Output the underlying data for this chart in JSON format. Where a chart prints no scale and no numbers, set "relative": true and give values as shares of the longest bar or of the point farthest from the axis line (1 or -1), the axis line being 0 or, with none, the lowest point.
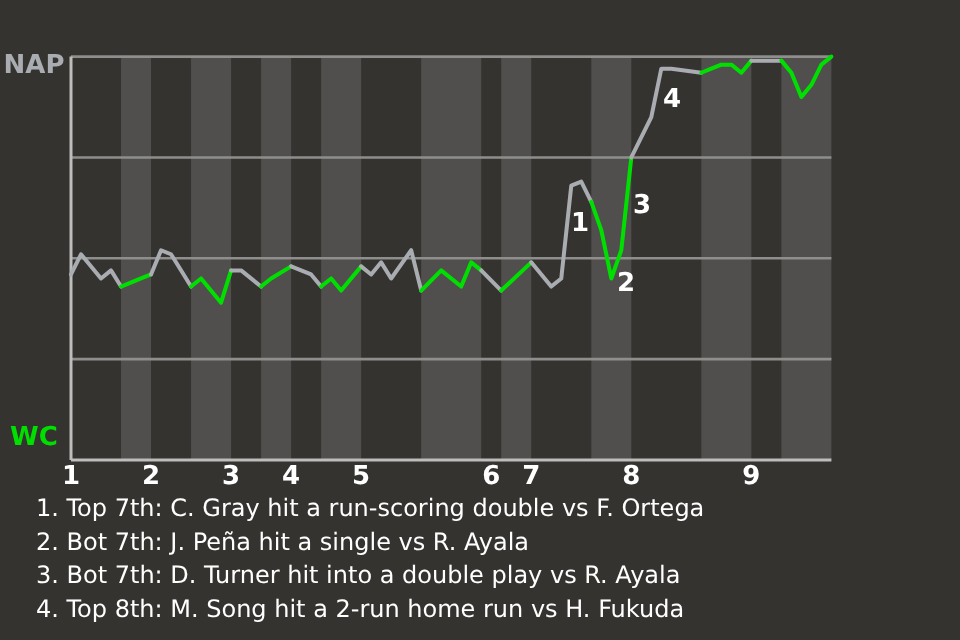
{
  "chart_data": {
    "type": "line",
    "relative": true,
    "categories": [
      "1",
      null,
      null,
      null,
      null,
      null,
      null,
      null,
      "2",
      null,
      null,
      null,
      null,
      null,
      null,
      null,
      "3",
      null,
      null,
      null,
      null,
      null,
      "4",
      null,
      null,
      null,
      null,
      null,
      null,
      "5",
      null,
      null,
      null,
      null,
      null,
      null,
      null,
      null,
      null,
      null,
      null,
      null,
      "6",
      null,
      null,
      null,
      "7",
      null,
      null,
      null,
      null,
      null,
      null,
      null,
      null,
      null,
      "8",
      null,
      null,
      null,
      null,
      null,
      null,
      null,
      null,
      null,
      null,
      null,
      "9",
      null,
      null,
      null,
      null,
      null,
      null,
      null,
      null
    ],
    "series": [
      {
        "color": "#a9adb1",
        "values": [
          0.46,
          0.51,
          null,
          0.45,
          0.47,
          0.43,
          null,
          null,
          null,
          null,
          null,
          null,
          null,
          null,
          null,
          null,
          null,
          null,
          null,
          null,
          null,
          null,
          null,
          null,
          null,
          null,
          null,
          null,
          null,
          null,
          null,
          null,
          null,
          null,
          null,
          null,
          null,
          null,
          null,
          null,
          null,
          null,
          null,
          null,
          null,
          null,
          null,
          null,
          null,
          null,
          null,
          null,
          null,
          null,
          null,
          null,
          null,
          null,
          null,
          null,
          null,
          null,
          null,
          null,
          null,
          null,
          null,
          null,
          null,
          null,
          null,
          null,
          null,
          null,
          null,
          null,
          null
        ]
      },
      {
        "color": "#00e000",
        "values": [
          null,
          null,
          null,
          null,
          null,
          0.43,
          null,
          0.45,
          0.46,
          null,
          null,
          null,
          null,
          null,
          null,
          null,
          null,
          null,
          null,
          null,
          null,
          null,
          null,
          null,
          null,
          null,
          null,
          null,
          null,
          null,
          null,
          null,
          null,
          null,
          null,
          null,
          null,
          null,
          null,
          null,
          null,
          null,
          null,
          null,
          null,
          null,
          null,
          null,
          null,
          null,
          null,
          null,
          null,
          null,
          null,
          null,
          null,
          null,
          null,
          null,
          null,
          null,
          null,
          null,
          null,
          null,
          null,
          null,
          null,
          null,
          null,
          null,
          null,
          null,
          null,
          null,
          null
        ]
      },
      {
        "color": "#a9adb1",
        "values": [
          null,
          null,
          null,
          null,
          null,
          null,
          null,
          null,
          0.46,
          0.52,
          0.51,
          null,
          0.43,
          null,
          null,
          null,
          null,
          null,
          null,
          null,
          null,
          null,
          null,
          null,
          null,
          null,
          null,
          null,
          null,
          null,
          null,
          null,
          null,
          null,
          null,
          null,
          null,
          null,
          null,
          null,
          null,
          null,
          null,
          null,
          null,
          null,
          null,
          null,
          null,
          null,
          null,
          null,
          null,
          null,
          null,
          null,
          null,
          null,
          null,
          null,
          null,
          null,
          null,
          null,
          null,
          null,
          null,
          null,
          null,
          null,
          null,
          null,
          null,
          null,
          null,
          null,
          null
        ]
      },
      {
        "color": "#00e000",
        "values": [
          null,
          null,
          null,
          null,
          null,
          null,
          null,
          null,
          null,
          null,
          null,
          null,
          0.43,
          0.45,
          null,
          0.39,
          0.47,
          null,
          null,
          null,
          null,
          null,
          null,
          null,
          null,
          null,
          null,
          null,
          null,
          null,
          null,
          null,
          null,
          null,
          null,
          null,
          null,
          null,
          null,
          null,
          null,
          null,
          null,
          null,
          null,
          null,
          null,
          null,
          null,
          null,
          null,
          null,
          null,
          null,
          null,
          null,
          null,
          null,
          null,
          null,
          null,
          null,
          null,
          null,
          null,
          null,
          null,
          null,
          null,
          null,
          null,
          null,
          null,
          null,
          null,
          null,
          null
        ]
      },
      {
        "color": "#a9adb1",
        "values": [
          null,
          null,
          null,
          null,
          null,
          null,
          null,
          null,
          null,
          null,
          null,
          null,
          null,
          null,
          null,
          null,
          0.47,
          0.47,
          null,
          0.43,
          null,
          null,
          null,
          null,
          null,
          null,
          null,
          null,
          null,
          null,
          null,
          null,
          null,
          null,
          null,
          null,
          null,
          null,
          null,
          null,
          null,
          null,
          null,
          null,
          null,
          null,
          null,
          null,
          null,
          null,
          null,
          null,
          null,
          null,
          null,
          null,
          null,
          null,
          null,
          null,
          null,
          null,
          null,
          null,
          null,
          null,
          null,
          null,
          null,
          null,
          null,
          null,
          null,
          null,
          null,
          null,
          null
        ]
      },
      {
        "color": "#00e000",
        "values": [
          null,
          null,
          null,
          null,
          null,
          null,
          null,
          null,
          null,
          null,
          null,
          null,
          null,
          null,
          null,
          null,
          null,
          null,
          null,
          0.43,
          0.45,
          null,
          0.48,
          null,
          null,
          null,
          null,
          null,
          null,
          null,
          null,
          null,
          null,
          null,
          null,
          null,
          null,
          null,
          null,
          null,
          null,
          null,
          null,
          null,
          null,
          null,
          null,
          null,
          null,
          null,
          null,
          null,
          null,
          null,
          null,
          null,
          null,
          null,
          null,
          null,
          null,
          null,
          null,
          null,
          null,
          null,
          null,
          null,
          null,
          null,
          null,
          null,
          null,
          null,
          null,
          null,
          null
        ]
      },
      {
        "color": "#a9adb1",
        "values": [
          null,
          null,
          null,
          null,
          null,
          null,
          null,
          null,
          null,
          null,
          null,
          null,
          null,
          null,
          null,
          null,
          null,
          null,
          null,
          null,
          null,
          null,
          0.48,
          null,
          0.46,
          0.43,
          null,
          null,
          null,
          null,
          null,
          null,
          null,
          null,
          null,
          null,
          null,
          null,
          null,
          null,
          null,
          null,
          null,
          null,
          null,
          null,
          null,
          null,
          null,
          null,
          null,
          null,
          null,
          null,
          null,
          null,
          null,
          null,
          null,
          null,
          null,
          null,
          null,
          null,
          null,
          null,
          null,
          null,
          null,
          null,
          null,
          null,
          null,
          null,
          null,
          null,
          null
        ]
      },
      {
        "color": "#00e000",
        "values": [
          null,
          null,
          null,
          null,
          null,
          null,
          null,
          null,
          null,
          null,
          null,
          null,
          null,
          null,
          null,
          null,
          null,
          null,
          null,
          null,
          null,
          null,
          null,
          null,
          null,
          0.43,
          0.45,
          0.42,
          null,
          0.48,
          null,
          null,
          null,
          null,
          null,
          null,
          null,
          null,
          null,
          null,
          null,
          null,
          null,
          null,
          null,
          null,
          null,
          null,
          null,
          null,
          null,
          null,
          null,
          null,
          null,
          null,
          null,
          null,
          null,
          null,
          null,
          null,
          null,
          null,
          null,
          null,
          null,
          null,
          null,
          null,
          null,
          null,
          null,
          null,
          null,
          null,
          null
        ]
      },
      {
        "color": "#a9adb1",
        "values": [
          null,
          null,
          null,
          null,
          null,
          null,
          null,
          null,
          null,
          null,
          null,
          null,
          null,
          null,
          null,
          null,
          null,
          null,
          null,
          null,
          null,
          null,
          null,
          null,
          null,
          null,
          null,
          null,
          null,
          0.48,
          0.46,
          0.49,
          0.45,
          null,
          0.52,
          0.42,
          null,
          null,
          null,
          null,
          null,
          null,
          null,
          null,
          null,
          null,
          null,
          null,
          null,
          null,
          null,
          null,
          null,
          null,
          null,
          null,
          null,
          null,
          null,
          null,
          null,
          null,
          null,
          null,
          null,
          null,
          null,
          null,
          null,
          null,
          null,
          null,
          null,
          null,
          null,
          null,
          null
        ]
      },
      {
        "color": "#00e000",
        "values": [
          null,
          null,
          null,
          null,
          null,
          null,
          null,
          null,
          null,
          null,
          null,
          null,
          null,
          null,
          null,
          null,
          null,
          null,
          null,
          null,
          null,
          null,
          null,
          null,
          null,
          null,
          null,
          null,
          null,
          null,
          null,
          null,
          null,
          null,
          null,
          0.42,
          null,
          0.47,
          null,
          0.43,
          0.49,
          0.47,
          null,
          null,
          null,
          null,
          null,
          null,
          null,
          null,
          null,
          null,
          null,
          null,
          null,
          null,
          null,
          null,
          null,
          null,
          null,
          null,
          null,
          null,
          null,
          null,
          null,
          null,
          null,
          null,
          null,
          null,
          null,
          null,
          null,
          null,
          null
        ]
      },
      {
        "color": "#a9adb1",
        "values": [
          null,
          null,
          null,
          null,
          null,
          null,
          null,
          null,
          null,
          null,
          null,
          null,
          null,
          null,
          null,
          null,
          null,
          null,
          null,
          null,
          null,
          null,
          null,
          null,
          null,
          null,
          null,
          null,
          null,
          null,
          null,
          null,
          null,
          null,
          null,
          null,
          null,
          null,
          null,
          null,
          null,
          0.47,
          null,
          0.42,
          null,
          null,
          null,
          null,
          null,
          null,
          null,
          null,
          null,
          null,
          null,
          null,
          null,
          null,
          null,
          null,
          null,
          null,
          null,
          null,
          null,
          null,
          null,
          null,
          null,
          null,
          null,
          null,
          null,
          null,
          null,
          null,
          null
        ]
      },
      {
        "color": "#00e000",
        "values": [
          null,
          null,
          null,
          null,
          null,
          null,
          null,
          null,
          null,
          null,
          null,
          null,
          null,
          null,
          null,
          null,
          null,
          null,
          null,
          null,
          null,
          null,
          null,
          null,
          null,
          null,
          null,
          null,
          null,
          null,
          null,
          null,
          null,
          null,
          null,
          null,
          null,
          null,
          null,
          null,
          null,
          null,
          null,
          0.42,
          null,
          null,
          0.49,
          null,
          null,
          null,
          null,
          null,
          null,
          null,
          null,
          null,
          null,
          null,
          null,
          null,
          null,
          null,
          null,
          null,
          null,
          null,
          null,
          null,
          null,
          null,
          null,
          null,
          null,
          null,
          null,
          null,
          null
        ]
      },
      {
        "color": "#a9adb1",
        "values": [
          null,
          null,
          null,
          null,
          null,
          null,
          null,
          null,
          null,
          null,
          null,
          null,
          null,
          null,
          null,
          null,
          null,
          null,
          null,
          null,
          null,
          null,
          null,
          null,
          null,
          null,
          null,
          null,
          null,
          null,
          null,
          null,
          null,
          null,
          null,
          null,
          null,
          null,
          null,
          null,
          null,
          null,
          null,
          null,
          null,
          null,
          0.49,
          null,
          0.43,
          0.45,
          0.68,
          0.69,
          0.64,
          null,
          null,
          null,
          null,
          null,
          null,
          null,
          null,
          null,
          null,
          null,
          null,
          null,
          null,
          null,
          null,
          null,
          null,
          null,
          null,
          null,
          null,
          null,
          null
        ]
      },
      {
        "color": "#00e000",
        "values": [
          null,
          null,
          null,
          null,
          null,
          null,
          null,
          null,
          null,
          null,
          null,
          null,
          null,
          null,
          null,
          null,
          null,
          null,
          null,
          null,
          null,
          null,
          null,
          null,
          null,
          null,
          null,
          null,
          null,
          null,
          null,
          null,
          null,
          null,
          null,
          null,
          null,
          null,
          null,
          null,
          null,
          null,
          null,
          null,
          null,
          null,
          null,
          null,
          null,
          null,
          null,
          null,
          0.64,
          0.57,
          0.45,
          0.52,
          0.75,
          null,
          null,
          null,
          null,
          null,
          null,
          null,
          null,
          null,
          null,
          null,
          null,
          null,
          null,
          null,
          null,
          null,
          null,
          null,
          null
        ]
      },
      {
        "color": "#a9adb1",
        "values": [
          null,
          null,
          null,
          null,
          null,
          null,
          null,
          null,
          null,
          null,
          null,
          null,
          null,
          null,
          null,
          null,
          null,
          null,
          null,
          null,
          null,
          null,
          null,
          null,
          null,
          null,
          null,
          null,
          null,
          null,
          null,
          null,
          null,
          null,
          null,
          null,
          null,
          null,
          null,
          null,
          null,
          null,
          null,
          null,
          null,
          null,
          null,
          null,
          null,
          null,
          null,
          null,
          null,
          null,
          null,
          null,
          0.75,
          null,
          0.85,
          0.97,
          0.97,
          null,
          null,
          0.96,
          null,
          null,
          null,
          null,
          null,
          null,
          null,
          null,
          null,
          null,
          null,
          null,
          null
        ]
      },
      {
        "color": "#00e000",
        "values": [
          null,
          null,
          null,
          null,
          null,
          null,
          null,
          null,
          null,
          null,
          null,
          null,
          null,
          null,
          null,
          null,
          null,
          null,
          null,
          null,
          null,
          null,
          null,
          null,
          null,
          null,
          null,
          null,
          null,
          null,
          null,
          null,
          null,
          null,
          null,
          null,
          null,
          null,
          null,
          null,
          null,
          null,
          null,
          null,
          null,
          null,
          null,
          null,
          null,
          null,
          null,
          null,
          null,
          null,
          null,
          null,
          null,
          null,
          null,
          null,
          null,
          null,
          null,
          0.96,
          0.97,
          0.98,
          0.98,
          0.96,
          0.99,
          null,
          null,
          null,
          null,
          null,
          null,
          null,
          null
        ]
      },
      {
        "color": "#a9adb1",
        "values": [
          null,
          null,
          null,
          null,
          null,
          null,
          null,
          null,
          null,
          null,
          null,
          null,
          null,
          null,
          null,
          null,
          null,
          null,
          null,
          null,
          null,
          null,
          null,
          null,
          null,
          null,
          null,
          null,
          null,
          null,
          null,
          null,
          null,
          null,
          null,
          null,
          null,
          null,
          null,
          null,
          null,
          null,
          null,
          null,
          null,
          null,
          null,
          null,
          null,
          null,
          null,
          null,
          null,
          null,
          null,
          null,
          null,
          null,
          null,
          null,
          null,
          null,
          null,
          null,
          null,
          null,
          null,
          null,
          0.99,
          0.99,
          null,
          0.99,
          null,
          null,
          null,
          null,
          null
        ]
      },
      {
        "color": "#00e000",
        "values": [
          null,
          null,
          null,
          null,
          null,
          null,
          null,
          null,
          null,
          null,
          null,
          null,
          null,
          null,
          null,
          null,
          null,
          null,
          null,
          null,
          null,
          null,
          null,
          null,
          null,
          null,
          null,
          null,
          null,
          null,
          null,
          null,
          null,
          null,
          null,
          null,
          null,
          null,
          null,
          null,
          null,
          null,
          null,
          null,
          null,
          null,
          null,
          null,
          null,
          null,
          null,
          null,
          null,
          null,
          null,
          null,
          null,
          null,
          null,
          null,
          null,
          null,
          null,
          null,
          null,
          null,
          null,
          null,
          null,
          null,
          null,
          0.99,
          0.96,
          0.9,
          0.93,
          0.98,
          1.0
        ]
      }
    ],
    "ref_lines": [
      {
        "axis": "y",
        "value": 0.25,
        "color": "#8e8e8c"
      },
      {
        "axis": "y",
        "value": 0.5,
        "color": "#8e8e8c"
      },
      {
        "axis": "y",
        "value": 0.75,
        "color": "#8e8e8c"
      },
      {
        "axis": "y",
        "value": 1,
        "color": "#8e8e8c"
      }
    ],
    "annotations": [
      "NAP",
      "WC",
      "1",
      "2",
      "3",
      "4",
      "1. Top 7th: C. Gray hit a run-scoring double vs F. Ortega",
      "2. Bot 7th: J. Peña hit a single vs R. Ayala",
      "3. Bot 7th: D. Turner hit into a double play vs R. Ayala",
      "4. Top 8th: M. Song hit a 2-run home run vs H. Fukuda"
    ]
  }
}
